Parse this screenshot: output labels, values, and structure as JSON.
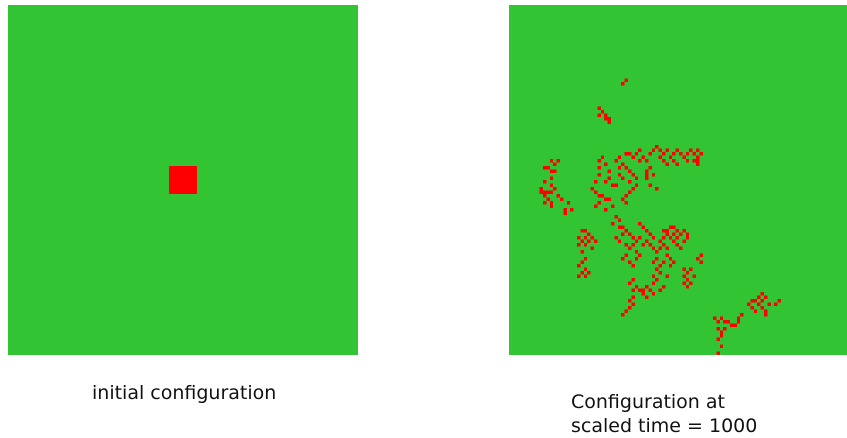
{
  "colors": {
    "background_green": "#33c433",
    "occupied_red": "#ff0000"
  },
  "panels": {
    "initial": {
      "caption": "initial configuration",
      "grid_cells": 100,
      "occupied_block": {
        "x0": 46,
        "y0": 46,
        "size": 8
      }
    },
    "final": {
      "caption_line1": "Configuration at",
      "caption_line2": "scaled time = 1000",
      "grid_cells": 100,
      "occupied_cells": [
        [
          33,
          22
        ],
        [
          34,
          21
        ],
        [
          26,
          29
        ],
        [
          27,
          30
        ],
        [
          26,
          31
        ],
        [
          28,
          31
        ],
        [
          29,
          32
        ],
        [
          28,
          32
        ],
        [
          29,
          33
        ],
        [
          12,
          44
        ],
        [
          14,
          44
        ],
        [
          13,
          45
        ],
        [
          10,
          46
        ],
        [
          11,
          46
        ],
        [
          12,
          47
        ],
        [
          13,
          47
        ],
        [
          12,
          49
        ],
        [
          10,
          50
        ],
        [
          12,
          51
        ],
        [
          9,
          52
        ],
        [
          13,
          52
        ],
        [
          9,
          53
        ],
        [
          10,
          53
        ],
        [
          11,
          53
        ],
        [
          12,
          53
        ],
        [
          10,
          54
        ],
        [
          14,
          54
        ],
        [
          11,
          55
        ],
        [
          15,
          55
        ],
        [
          10,
          56
        ],
        [
          12,
          56
        ],
        [
          17,
          56
        ],
        [
          12,
          57
        ],
        [
          16,
          58
        ],
        [
          18,
          58
        ],
        [
          16,
          59
        ],
        [
          26,
          44
        ],
        [
          27,
          43
        ],
        [
          26,
          46
        ],
        [
          28,
          45
        ],
        [
          26,
          48
        ],
        [
          29,
          47
        ],
        [
          29,
          49
        ],
        [
          25,
          50
        ],
        [
          28,
          50
        ],
        [
          30,
          51
        ],
        [
          31,
          51
        ],
        [
          24,
          52
        ],
        [
          25,
          53
        ],
        [
          26,
          54
        ],
        [
          27,
          54
        ],
        [
          28,
          55
        ],
        [
          26,
          56
        ],
        [
          29,
          55
        ],
        [
          30,
          57
        ],
        [
          25,
          57
        ],
        [
          28,
          58
        ],
        [
          31,
          44
        ],
        [
          32,
          43
        ],
        [
          34,
          42
        ],
        [
          35,
          42
        ],
        [
          36,
          43
        ],
        [
          32,
          46
        ],
        [
          33,
          45
        ],
        [
          34,
          46
        ],
        [
          35,
          47
        ],
        [
          36,
          48
        ],
        [
          32,
          48
        ],
        [
          33,
          49
        ],
        [
          35,
          50
        ],
        [
          37,
          49
        ],
        [
          37,
          51
        ],
        [
          36,
          52
        ],
        [
          35,
          53
        ],
        [
          34,
          54
        ],
        [
          33,
          55
        ],
        [
          34,
          56
        ],
        [
          37,
          42
        ],
        [
          38,
          41
        ],
        [
          39,
          43
        ],
        [
          40,
          44
        ],
        [
          38,
          44
        ],
        [
          41,
          42
        ],
        [
          42,
          41
        ],
        [
          43,
          40
        ],
        [
          44,
          41
        ],
        [
          45,
          42
        ],
        [
          46,
          41
        ],
        [
          47,
          43
        ],
        [
          48,
          42
        ],
        [
          49,
          41
        ],
        [
          50,
          42
        ],
        [
          48,
          44
        ],
        [
          49,
          45
        ],
        [
          51,
          43
        ],
        [
          52,
          42
        ],
        [
          53,
          41
        ],
        [
          54,
          42
        ],
        [
          55,
          41
        ],
        [
          56,
          42
        ],
        [
          55,
          43
        ],
        [
          55,
          44
        ],
        [
          55,
          45
        ],
        [
          54,
          44
        ],
        [
          52,
          44
        ],
        [
          44,
          43
        ],
        [
          45,
          44
        ],
        [
          46,
          45
        ],
        [
          40,
          47
        ],
        [
          41,
          46
        ],
        [
          40,
          48
        ],
        [
          42,
          48
        ],
        [
          40,
          49
        ],
        [
          43,
          52
        ],
        [
          41,
          51
        ],
        [
          31,
          60
        ],
        [
          32,
          61
        ],
        [
          30,
          62
        ],
        [
          32,
          63
        ],
        [
          33,
          63
        ],
        [
          34,
          64
        ],
        [
          33,
          65
        ],
        [
          31,
          66
        ],
        [
          35,
          65
        ],
        [
          36,
          66
        ],
        [
          32,
          67
        ],
        [
          34,
          68
        ],
        [
          36,
          68
        ],
        [
          35,
          69
        ],
        [
          37,
          70
        ],
        [
          34,
          71
        ],
        [
          33,
          72
        ],
        [
          37,
          72
        ],
        [
          35,
          73
        ],
        [
          36,
          74
        ],
        [
          38,
          71
        ],
        [
          21,
          64
        ],
        [
          22,
          64
        ],
        [
          23,
          65
        ],
        [
          20,
          66
        ],
        [
          22,
          66
        ],
        [
          24,
          66
        ],
        [
          21,
          67
        ],
        [
          23,
          67
        ],
        [
          25,
          67
        ],
        [
          20,
          68
        ],
        [
          22,
          68
        ],
        [
          24,
          69
        ],
        [
          21,
          70
        ],
        [
          22,
          72
        ],
        [
          21,
          73
        ],
        [
          20,
          74
        ],
        [
          22,
          75
        ],
        [
          21,
          76
        ],
        [
          20,
          77
        ],
        [
          22,
          77
        ],
        [
          23,
          76
        ],
        [
          38,
          62
        ],
        [
          39,
          63
        ],
        [
          40,
          64
        ],
        [
          41,
          65
        ],
        [
          42,
          66
        ],
        [
          38,
          66
        ],
        [
          37,
          67
        ],
        [
          39,
          68
        ],
        [
          40,
          67
        ],
        [
          41,
          68
        ],
        [
          42,
          69
        ],
        [
          43,
          70
        ],
        [
          44,
          69
        ],
        [
          44,
          67
        ],
        [
          45,
          66
        ],
        [
          46,
          65
        ],
        [
          45,
          68
        ],
        [
          46,
          69
        ],
        [
          43,
          72
        ],
        [
          42,
          73
        ],
        [
          44,
          74
        ],
        [
          43,
          75
        ],
        [
          44,
          76
        ],
        [
          42,
          77
        ],
        [
          43,
          78
        ],
        [
          42,
          79
        ],
        [
          45,
          80
        ],
        [
          44,
          81
        ],
        [
          46,
          77
        ],
        [
          45,
          64
        ],
        [
          46,
          64
        ],
        [
          47,
          63
        ],
        [
          48,
          63
        ],
        [
          49,
          64
        ],
        [
          48,
          65
        ],
        [
          47,
          66
        ],
        [
          48,
          67
        ],
        [
          49,
          66
        ],
        [
          50,
          65
        ],
        [
          51,
          64
        ],
        [
          52,
          65
        ],
        [
          52,
          66
        ],
        [
          51,
          67
        ],
        [
          49,
          68
        ],
        [
          50,
          69
        ],
        [
          46,
          71
        ],
        [
          47,
          72
        ],
        [
          45,
          73
        ],
        [
          47,
          74
        ],
        [
          48,
          73
        ],
        [
          36,
          78
        ],
        [
          35,
          79
        ],
        [
          37,
          80
        ],
        [
          36,
          81
        ],
        [
          38,
          81
        ],
        [
          39,
          81
        ],
        [
          40,
          80
        ],
        [
          41,
          81
        ],
        [
          42,
          82
        ],
        [
          36,
          83
        ],
        [
          35,
          84
        ],
        [
          36,
          85
        ],
        [
          35,
          86
        ],
        [
          34,
          87
        ],
        [
          33,
          88
        ],
        [
          39,
          82
        ],
        [
          40,
          83
        ],
        [
          51,
          75
        ],
        [
          52,
          76
        ],
        [
          51,
          77
        ],
        [
          52,
          78
        ],
        [
          51,
          79
        ],
        [
          52,
          80
        ],
        [
          53,
          79
        ],
        [
          53,
          75
        ],
        [
          54,
          77
        ],
        [
          55,
          72
        ],
        [
          56,
          71
        ],
        [
          56,
          73
        ],
        [
          60,
          89
        ],
        [
          61,
          90
        ],
        [
          62,
          89
        ],
        [
          63,
          90
        ],
        [
          64,
          90
        ],
        [
          65,
          91
        ],
        [
          66,
          91
        ],
        [
          67,
          90
        ],
        [
          67,
          89
        ],
        [
          68,
          88
        ],
        [
          61,
          92
        ],
        [
          62,
          93
        ],
        [
          63,
          92
        ],
        [
          62,
          94
        ],
        [
          61,
          95
        ],
        [
          62,
          97
        ],
        [
          61,
          99
        ],
        [
          60,
          101
        ],
        [
          61,
          102
        ],
        [
          70,
          85
        ],
        [
          71,
          84
        ],
        [
          72,
          84
        ],
        [
          73,
          83
        ],
        [
          74,
          84
        ],
        [
          75,
          83
        ],
        [
          73,
          85
        ],
        [
          74,
          86
        ],
        [
          75,
          87
        ],
        [
          75,
          88
        ],
        [
          72,
          87
        ],
        [
          71,
          86
        ],
        [
          76,
          85
        ],
        [
          78,
          85
        ],
        [
          79,
          84
        ],
        [
          74,
          82
        ]
      ],
      "scaled_time": 1000
    }
  }
}
